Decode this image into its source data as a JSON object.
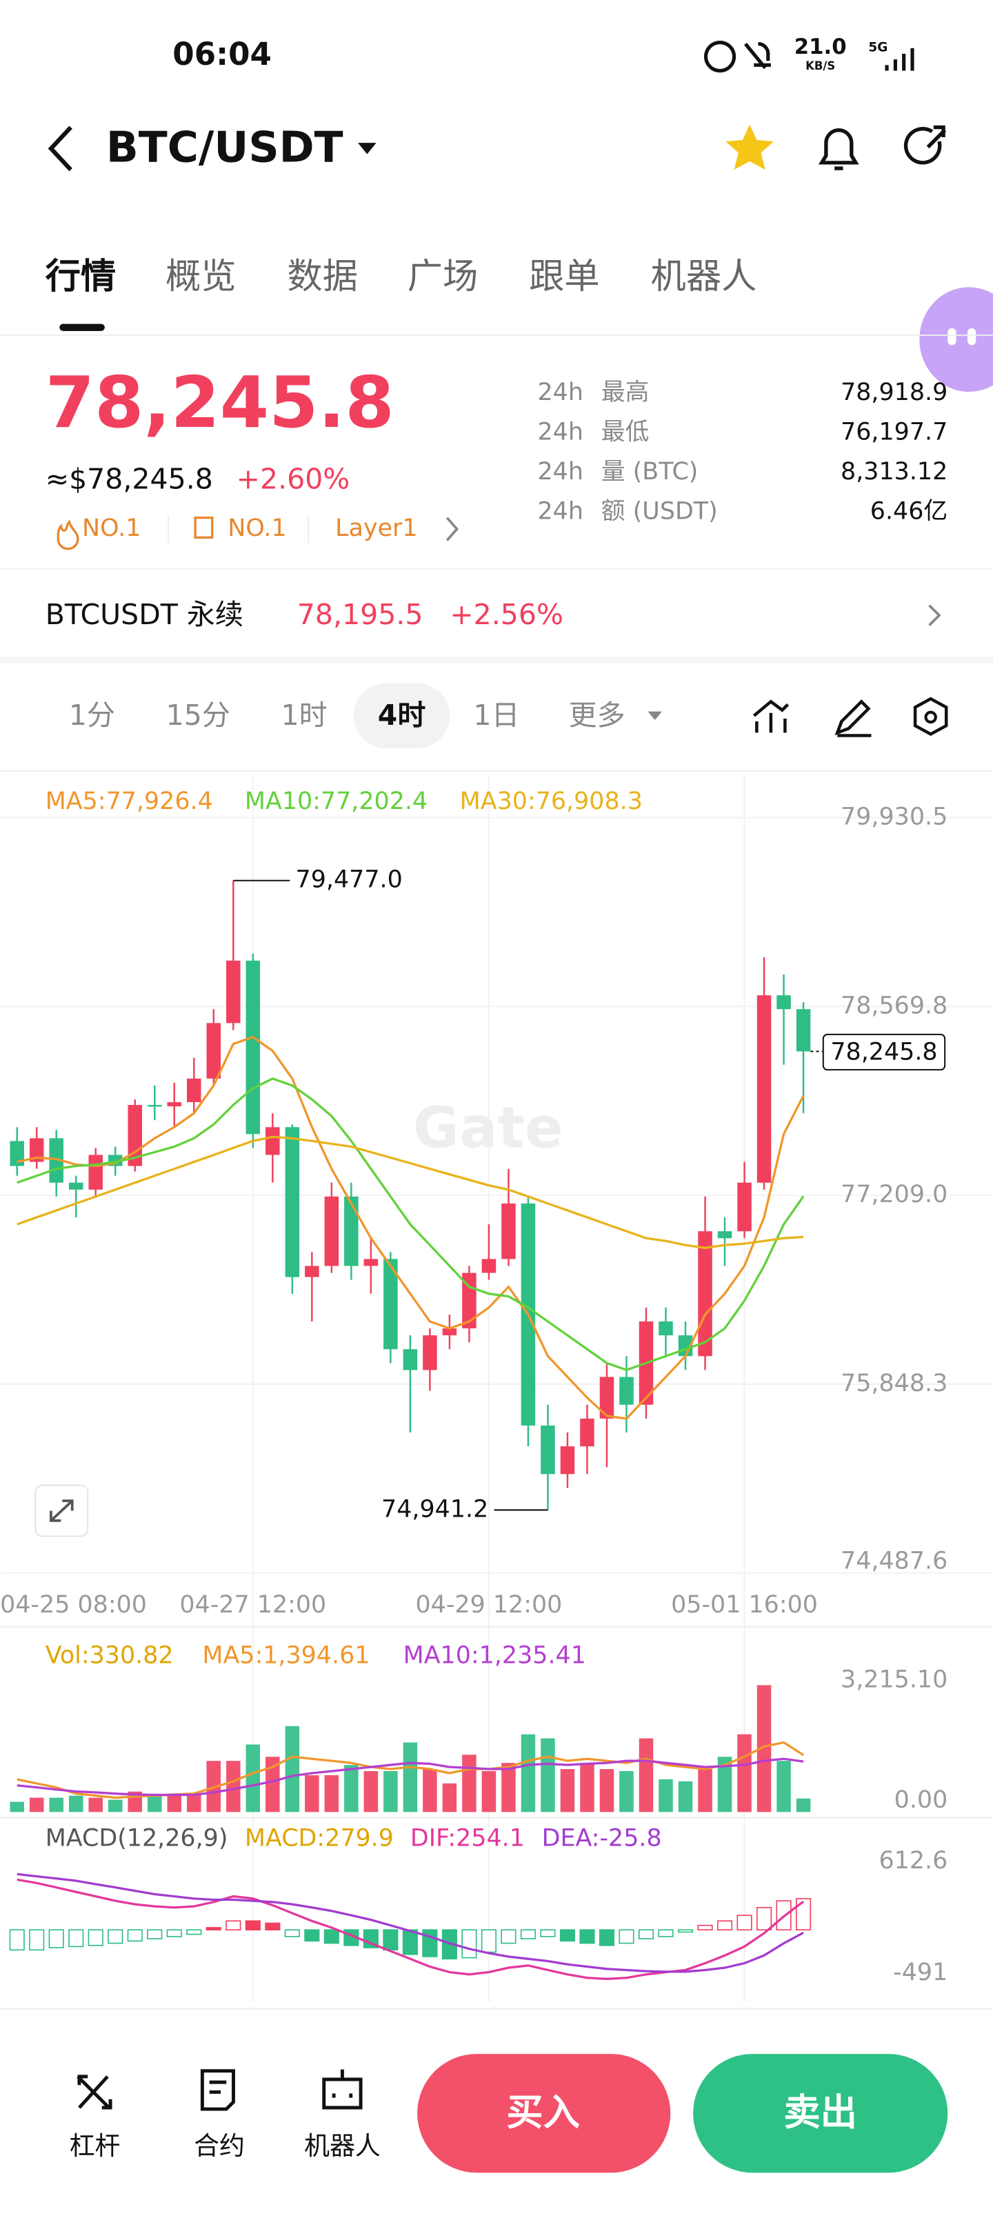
{
  "status_bar": {
    "time": "06:04",
    "speed": "21.0",
    "speed_unit": "KB/S",
    "network": "5G"
  },
  "header": {
    "pair": "BTC/USDT"
  },
  "tabs": [
    "行情",
    "概览",
    "数据",
    "广场",
    "跟单",
    "机器人"
  ],
  "ticker": {
    "price": "78,245.8",
    "usd_price": "≈$78,245.8",
    "change": "+2.60%",
    "rank_1": "NO.1",
    "rank_2": "NO.1",
    "tag": "Layer1"
  },
  "stats": [
    {
      "period": "24h",
      "label": "最高",
      "value": "78,918.9"
    },
    {
      "period": "24h",
      "label": "最低",
      "value": "76,197.7"
    },
    {
      "period": "24h",
      "label": "量 (BTC)",
      "value": "8,313.12"
    },
    {
      "period": "24h",
      "label": "额 (USDT)",
      "value": "6.46亿"
    }
  ],
  "perpetual": {
    "name": "BTCUSDT 永续",
    "price": "78,195.5",
    "change": "+2.56%"
  },
  "intervals": [
    "1分",
    "15分",
    "1时",
    "4时",
    "1日",
    "更多"
  ],
  "bottom_bar": {
    "tools": [
      "杠杆",
      "合约",
      "机器人"
    ],
    "buy": "买入",
    "sell": "卖出"
  },
  "chart_data": [
    {
      "type": "candlestick",
      "up_color": "#f0405e",
      "down_color": "#2ebd85",
      "grid": true,
      "watermark": "Gate",
      "ylim": [
        74487.6,
        79930.5
      ],
      "yticks": [
        {
          "value": 79930.5,
          "label": "79,930.5"
        },
        {
          "value": 78569.8,
          "label": "78,569.8"
        },
        {
          "value": 77209.0,
          "label": "77,209.0"
        },
        {
          "value": 75848.3,
          "label": "75,848.3"
        },
        {
          "value": 74487.6,
          "label": "74,487.6"
        }
      ],
      "xticks": [
        {
          "value": -1,
          "label": "04-25 08:00"
        },
        {
          "value": 12,
          "label": "04-27 12:00"
        },
        {
          "value": 24,
          "label": "04-29 12:00"
        },
        {
          "value": 37,
          "label": "05-01 16:00"
        }
      ],
      "open": [
        77600,
        77450,
        77620,
        77300,
        77250,
        77500,
        77420,
        77860,
        77850,
        77880,
        78050,
        78450,
        78900,
        77500,
        77700,
        76620,
        76700,
        77200,
        76700,
        76750,
        76100,
        75950,
        76200,
        76250,
        76650,
        76750,
        77150,
        75550,
        75200,
        75400,
        75600,
        75900,
        75700,
        76300,
        76200,
        76050,
        76950,
        76950,
        77300,
        78650,
        78550
      ],
      "close": [
        77420,
        77620,
        77300,
        77250,
        77500,
        77420,
        77860,
        77850,
        77880,
        78050,
        78450,
        78900,
        77650,
        77700,
        76620,
        76700,
        77200,
        76700,
        76750,
        76100,
        75950,
        76200,
        76250,
        76650,
        76750,
        77150,
        75550,
        75200,
        75400,
        75600,
        75900,
        75700,
        76300,
        76200,
        76050,
        76950,
        76900,
        77300,
        78650,
        78550,
        78245.8
      ],
      "high": [
        77700,
        77700,
        77680,
        77350,
        77550,
        77560,
        77900,
        78000,
        78020,
        78200,
        78550,
        79477,
        78950,
        77800,
        77720,
        76800,
        77300,
        77300,
        76900,
        76800,
        76200,
        76250,
        76350,
        76700,
        77000,
        77400,
        77200,
        75700,
        75500,
        75700,
        76000,
        76050,
        76400,
        76400,
        76300,
        77200,
        77050,
        77450,
        78925,
        78800,
        78600
      ],
      "low": [
        77350,
        77400,
        77200,
        77050,
        77200,
        77350,
        77380,
        77750,
        77700,
        77800,
        78000,
        78400,
        77550,
        77300,
        76500,
        76300,
        76650,
        76600,
        76500,
        76000,
        75500,
        75800,
        76100,
        76150,
        76600,
        76700,
        75400,
        74941.2,
        75100,
        75200,
        75250,
        75500,
        75600,
        76050,
        75950,
        75950,
        76700,
        76900,
        77250,
        78150,
        77800
      ],
      "indicators": [
        {
          "name": "MA5:77,926.4",
          "color": "#f0962b",
          "values": [
            77450,
            77480,
            77470,
            77430,
            77420,
            77440,
            77520,
            77620,
            77700,
            77800,
            78000,
            78300,
            78350,
            78250,
            78050,
            77700,
            77400,
            77150,
            76900,
            76700,
            76500,
            76300,
            76250,
            76300,
            76400,
            76550,
            76350,
            76050,
            75900,
            75750,
            75620,
            75600,
            75750,
            75900,
            76050,
            76350,
            76500,
            76700,
            77050,
            77650,
            77926.4
          ]
        },
        {
          "name": "MA10:77,202.4",
          "color": "#62d13a",
          "values": [
            77300,
            77350,
            77400,
            77420,
            77430,
            77450,
            77480,
            77520,
            77560,
            77620,
            77720,
            77860,
            77980,
            78050,
            78000,
            77900,
            77780,
            77600,
            77400,
            77200,
            77000,
            76850,
            76700,
            76550,
            76500,
            76480,
            76400,
            76300,
            76200,
            76100,
            76000,
            75950,
            76000,
            76050,
            76100,
            76150,
            76250,
            76450,
            76700,
            77000,
            77202.4
          ]
        },
        {
          "name": "MA30:76,908.3",
          "color": "#e8b21a",
          "values": [
            77000,
            77050,
            77100,
            77150,
            77200,
            77250,
            77300,
            77350,
            77400,
            77450,
            77500,
            77550,
            77600,
            77630,
            77620,
            77600,
            77580,
            77560,
            77520,
            77480,
            77440,
            77400,
            77360,
            77320,
            77280,
            77250,
            77200,
            77150,
            77100,
            77050,
            77000,
            76950,
            76900,
            76880,
            76850,
            76830,
            76850,
            76860,
            76880,
            76900,
            76908.3
          ]
        }
      ],
      "high_label": {
        "value": 79477.0,
        "label": "79,477.0"
      },
      "low_label": {
        "value": 74941.2,
        "label": "74,941.2"
      },
      "last_label": {
        "value": 78245.8,
        "label": "78,245.8"
      }
    },
    {
      "type": "volume",
      "label": "Vol:330.82",
      "label_color": "#e0a500",
      "ylim": [
        0,
        3215.1
      ],
      "yticks": [
        {
          "value": 3215.1,
          "label": "3,215.10"
        },
        {
          "value": 0,
          "label": "0.00"
        }
      ],
      "values": [
        250,
        350,
        350,
        400,
        350,
        300,
        500,
        400,
        450,
        450,
        1250,
        1250,
        1650,
        1350,
        2100,
        900,
        900,
        1150,
        1000,
        1000,
        1700,
        1050,
        700,
        1400,
        1000,
        1200,
        1900,
        1800,
        1050,
        1200,
        1050,
        1000,
        1800,
        800,
        750,
        1050,
        1350,
        1900,
        3100,
        1250,
        330.82
      ],
      "series": [
        {
          "name": "MA5:1,394.61",
          "color": "#f0962b",
          "values": [
            800,
            700,
            600,
            450,
            400,
            350,
            380,
            400,
            430,
            450,
            600,
            750,
            950,
            1100,
            1350,
            1300,
            1250,
            1200,
            1100,
            1050,
            1100,
            1050,
            950,
            1050,
            1050,
            1100,
            1250,
            1350,
            1250,
            1300,
            1250,
            1200,
            1300,
            1150,
            1100,
            1050,
            1150,
            1350,
            1600,
            1700,
            1394.61
          ]
        },
        {
          "name": "MA10:1,235.41",
          "color": "#b43fd0",
          "values": [
            650,
            600,
            550,
            500,
            480,
            450,
            430,
            420,
            420,
            420,
            480,
            560,
            650,
            750,
            880,
            950,
            1000,
            1050,
            1100,
            1150,
            1200,
            1180,
            1100,
            1080,
            1050,
            1050,
            1150,
            1180,
            1150,
            1180,
            1200,
            1250,
            1250,
            1200,
            1150,
            1100,
            1120,
            1150,
            1250,
            1300,
            1235.41
          ]
        }
      ]
    },
    {
      "type": "macd",
      "title": "MACD(12,26,9)",
      "ylim": [
        -491.0,
        612.6
      ],
      "yticks": [
        612.6,
        -491.0
      ],
      "histogram": {
        "name": "MACD:279.9",
        "color": "#e0a500",
        "values": [
          -180,
          -180,
          -160,
          -150,
          -140,
          -120,
          -100,
          -80,
          -60,
          -40,
          20,
          80,
          80,
          60,
          -60,
          -100,
          -120,
          -140,
          -160,
          -180,
          -220,
          -240,
          -260,
          -250,
          -200,
          -120,
          -80,
          -60,
          -100,
          -120,
          -140,
          -120,
          -80,
          -60,
          -20,
          40,
          80,
          130,
          200,
          260,
          279.9
        ]
      },
      "series": [
        {
          "name": "DIF:254.1",
          "color": "#e3379b",
          "values": [
            450,
            420,
            380,
            340,
            300,
            260,
            230,
            210,
            200,
            210,
            250,
            300,
            280,
            220,
            150,
            80,
            20,
            -50,
            -120,
            -190,
            -260,
            -330,
            -380,
            -400,
            -380,
            -340,
            -320,
            -360,
            -400,
            -430,
            -440,
            -430,
            -400,
            -380,
            -360,
            -300,
            -230,
            -150,
            -30,
            120,
            254.1
          ]
        },
        {
          "name": "DEA:-25.8",
          "color": "#a23ccf",
          "values": [
            500,
            480,
            460,
            440,
            410,
            380,
            350,
            320,
            300,
            280,
            270,
            270,
            260,
            250,
            230,
            200,
            170,
            130,
            90,
            40,
            -10,
            -60,
            -120,
            -170,
            -210,
            -240,
            -260,
            -280,
            -310,
            -330,
            -350,
            -360,
            -370,
            -375,
            -375,
            -360,
            -340,
            -300,
            -230,
            -120,
            -25.8
          ]
        }
      ]
    }
  ]
}
